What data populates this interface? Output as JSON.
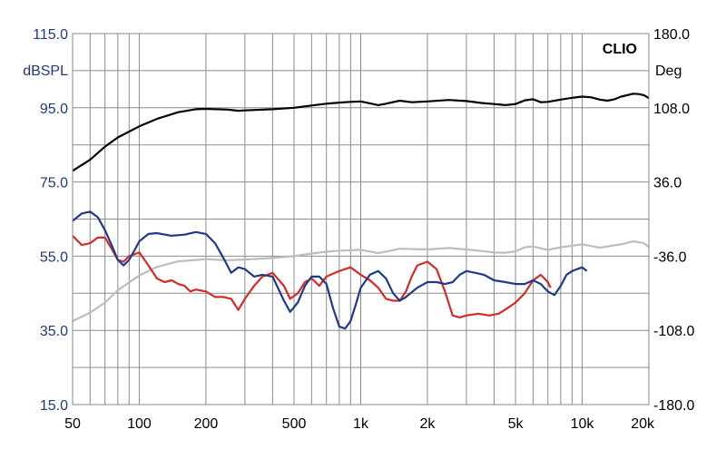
{
  "chart_data": {
    "type": "line",
    "brand_label": "CLIO",
    "x_scale": "log",
    "xlim": [
      50,
      20000
    ],
    "x_ticks": [
      {
        "value": 50,
        "label": "50"
      },
      {
        "value": 100,
        "label": "100"
      },
      {
        "value": 200,
        "label": "200"
      },
      {
        "value": 500,
        "label": "500"
      },
      {
        "value": 1000,
        "label": "1k"
      },
      {
        "value": 2000,
        "label": "2k"
      },
      {
        "value": 5000,
        "label": "5k"
      },
      {
        "value": 10000,
        "label": "10k"
      },
      {
        "value": 20000,
        "label": "20k"
      }
    ],
    "y_left": {
      "unit_label": "dBSPL",
      "range": [
        15,
        115
      ],
      "ticks": [
        "115.0",
        "95.0",
        "75.0",
        "55.0",
        "35.0",
        "15.0"
      ],
      "tick_values": [
        115,
        95,
        75,
        55,
        35,
        15
      ]
    },
    "y_right": {
      "unit_label": "Deg",
      "range": [
        -180,
        180
      ],
      "ticks": [
        "180.0",
        "108.0",
        "36.0",
        "-36.0",
        "-108.0",
        "-180.0"
      ],
      "tick_values": [
        180,
        108,
        36,
        -36,
        -108,
        -180
      ]
    },
    "grid": true,
    "series": [
      {
        "color": "#000000",
        "axis": "left",
        "points": [
          [
            50,
            78
          ],
          [
            60,
            81
          ],
          [
            70,
            84.5
          ],
          [
            80,
            87
          ],
          [
            100,
            90
          ],
          [
            120,
            92
          ],
          [
            150,
            93.8
          ],
          [
            180,
            94.6
          ],
          [
            200,
            94.7
          ],
          [
            250,
            94.5
          ],
          [
            280,
            94.2
          ],
          [
            300,
            94.3
          ],
          [
            400,
            94.6
          ],
          [
            500,
            95
          ],
          [
            600,
            95.6
          ],
          [
            700,
            96.1
          ],
          [
            800,
            96.4
          ],
          [
            900,
            96.6
          ],
          [
            1000,
            96.7
          ],
          [
            1100,
            96.2
          ],
          [
            1200,
            95.7
          ],
          [
            1300,
            96.1
          ],
          [
            1500,
            96.9
          ],
          [
            1700,
            96.5
          ],
          [
            2000,
            96.7
          ],
          [
            2500,
            97.1
          ],
          [
            3000,
            96.8
          ],
          [
            3500,
            96.3
          ],
          [
            4000,
            96
          ],
          [
            4500,
            95.7
          ],
          [
            5000,
            96
          ],
          [
            5500,
            97
          ],
          [
            6000,
            97.3
          ],
          [
            6500,
            96.5
          ],
          [
            7000,
            96.6
          ],
          [
            8000,
            97.2
          ],
          [
            9000,
            97.7
          ],
          [
            10000,
            98
          ],
          [
            11000,
            97.8
          ],
          [
            12000,
            97.2
          ],
          [
            13000,
            96.9
          ],
          [
            14000,
            97.3
          ],
          [
            15000,
            98
          ],
          [
            17000,
            98.8
          ],
          [
            18000,
            98.7
          ],
          [
            19000,
            98.4
          ],
          [
            20000,
            97.6
          ]
        ]
      },
      {
        "color": "#1f3a8a",
        "axis": "left",
        "points": [
          [
            50,
            64.5
          ],
          [
            55,
            66.5
          ],
          [
            60,
            67
          ],
          [
            65,
            65.5
          ],
          [
            70,
            62
          ],
          [
            75,
            58
          ],
          [
            80,
            54
          ],
          [
            85,
            52.5
          ],
          [
            90,
            54
          ],
          [
            95,
            56.5
          ],
          [
            100,
            59
          ],
          [
            110,
            61
          ],
          [
            120,
            61.2
          ],
          [
            140,
            60.5
          ],
          [
            160,
            60.8
          ],
          [
            180,
            61.5
          ],
          [
            200,
            61
          ],
          [
            220,
            58.5
          ],
          [
            240,
            54.5
          ],
          [
            260,
            50.5
          ],
          [
            280,
            52
          ],
          [
            300,
            51.5
          ],
          [
            330,
            49.5
          ],
          [
            360,
            50
          ],
          [
            400,
            49.5
          ],
          [
            450,
            43
          ],
          [
            480,
            40
          ],
          [
            520,
            42.5
          ],
          [
            560,
            47
          ],
          [
            600,
            49.5
          ],
          [
            650,
            49.5
          ],
          [
            700,
            47.5
          ],
          [
            750,
            41
          ],
          [
            800,
            36
          ],
          [
            850,
            35.5
          ],
          [
            900,
            37.5
          ],
          [
            950,
            42
          ],
          [
            1000,
            46.5
          ],
          [
            1100,
            50
          ],
          [
            1200,
            51
          ],
          [
            1300,
            49
          ],
          [
            1400,
            45
          ],
          [
            1500,
            43
          ],
          [
            1600,
            44
          ],
          [
            1800,
            46.5
          ],
          [
            2000,
            48
          ],
          [
            2200,
            48
          ],
          [
            2400,
            47.5
          ],
          [
            2600,
            48
          ],
          [
            2800,
            50
          ],
          [
            3000,
            51
          ],
          [
            3300,
            50.5
          ],
          [
            3600,
            50
          ],
          [
            4000,
            48.5
          ],
          [
            4500,
            48
          ],
          [
            5000,
            47.5
          ],
          [
            5500,
            47.5
          ],
          [
            6000,
            48.5
          ],
          [
            6500,
            47.5
          ],
          [
            7000,
            45.5
          ],
          [
            7500,
            44.5
          ],
          [
            8000,
            47
          ],
          [
            8500,
            50
          ],
          [
            9000,
            51
          ],
          [
            9500,
            51.5
          ],
          [
            10000,
            52
          ],
          [
            10500,
            51
          ]
        ]
      },
      {
        "color": "#d42a2a",
        "axis": "left",
        "points": [
          [
            50,
            60.5
          ],
          [
            55,
            58
          ],
          [
            60,
            58.5
          ],
          [
            65,
            60
          ],
          [
            70,
            60
          ],
          [
            75,
            57
          ],
          [
            80,
            54
          ],
          [
            85,
            53.5
          ],
          [
            90,
            55
          ],
          [
            100,
            56
          ],
          [
            110,
            52.5
          ],
          [
            120,
            49
          ],
          [
            130,
            48
          ],
          [
            140,
            48.5
          ],
          [
            150,
            47.5
          ],
          [
            160,
            47
          ],
          [
            170,
            45.5
          ],
          [
            180,
            46
          ],
          [
            200,
            45.5
          ],
          [
            220,
            44
          ],
          [
            240,
            44
          ],
          [
            260,
            43.5
          ],
          [
            280,
            40.5
          ],
          [
            300,
            43.5
          ],
          [
            330,
            47
          ],
          [
            360,
            49.5
          ],
          [
            400,
            50.5
          ],
          [
            450,
            47
          ],
          [
            480,
            43.5
          ],
          [
            520,
            45
          ],
          [
            560,
            48
          ],
          [
            600,
            49
          ],
          [
            650,
            47
          ],
          [
            700,
            49.5
          ],
          [
            800,
            51
          ],
          [
            900,
            52
          ],
          [
            1000,
            50
          ],
          [
            1100,
            48.5
          ],
          [
            1200,
            46.5
          ],
          [
            1300,
            43.5
          ],
          [
            1400,
            43
          ],
          [
            1500,
            43
          ],
          [
            1600,
            45.5
          ],
          [
            1700,
            49.5
          ],
          [
            1800,
            52.5
          ],
          [
            2000,
            53.5
          ],
          [
            2200,
            51.5
          ],
          [
            2400,
            45.5
          ],
          [
            2600,
            39
          ],
          [
            2800,
            38.5
          ],
          [
            3000,
            39
          ],
          [
            3400,
            39.5
          ],
          [
            3800,
            39
          ],
          [
            4200,
            39.5
          ],
          [
            4600,
            41
          ],
          [
            5000,
            42.5
          ],
          [
            5500,
            45
          ],
          [
            6000,
            48.5
          ],
          [
            6500,
            50
          ],
          [
            7000,
            48
          ],
          [
            7200,
            46.5
          ]
        ]
      },
      {
        "color": "#bdbdbd",
        "axis": "left",
        "points": [
          [
            50,
            37.5
          ],
          [
            60,
            39.8
          ],
          [
            70,
            42.5
          ],
          [
            80,
            45.8
          ],
          [
            100,
            49.8
          ],
          [
            120,
            52.1
          ],
          [
            150,
            53.6
          ],
          [
            200,
            54.2
          ],
          [
            250,
            53.9
          ],
          [
            300,
            54.1
          ],
          [
            400,
            54.5
          ],
          [
            500,
            55
          ],
          [
            600,
            55.7
          ],
          [
            700,
            56.2
          ],
          [
            800,
            56.5
          ],
          [
            900,
            56.6
          ],
          [
            1000,
            56.7
          ],
          [
            1200,
            55.8
          ],
          [
            1500,
            57
          ],
          [
            2000,
            56.8
          ],
          [
            2500,
            57.2
          ],
          [
            3000,
            56.8
          ],
          [
            3500,
            56.4
          ],
          [
            4000,
            56
          ],
          [
            4500,
            55.9
          ],
          [
            5000,
            56.3
          ],
          [
            5500,
            57.4
          ],
          [
            6000,
            57.6
          ],
          [
            7000,
            56.7
          ],
          [
            8000,
            57.4
          ],
          [
            10000,
            58.2
          ],
          [
            12000,
            57.3
          ],
          [
            15000,
            58.2
          ],
          [
            17000,
            59
          ],
          [
            19000,
            58.5
          ],
          [
            20000,
            57.5
          ]
        ]
      }
    ]
  }
}
